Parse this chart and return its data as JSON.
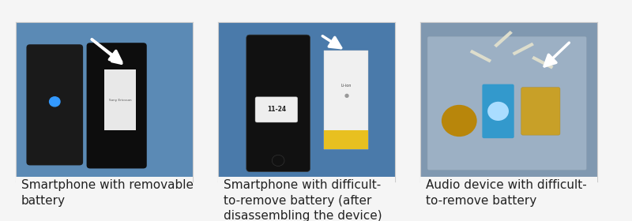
{
  "background_color": "#f5f5f5",
  "panel_background": "#ffffff",
  "num_panels": 3,
  "captions": [
    "Smartphone with removable\nbattery",
    "Smartphone with difficult-\nto-remove battery (after\ndisassembling the device)",
    "Audio device with difficult-\nto-remove battery"
  ],
  "caption_fontsize": 11,
  "caption_color": "#222222",
  "panel_edge_color": "#cccccc",
  "fig_width": 8.0,
  "fig_height": 2.8,
  "image_placeholder_colors": [
    "#5b8ab5",
    "#4a7a9e",
    "#8098b0"
  ],
  "image_aspect": 0.75
}
